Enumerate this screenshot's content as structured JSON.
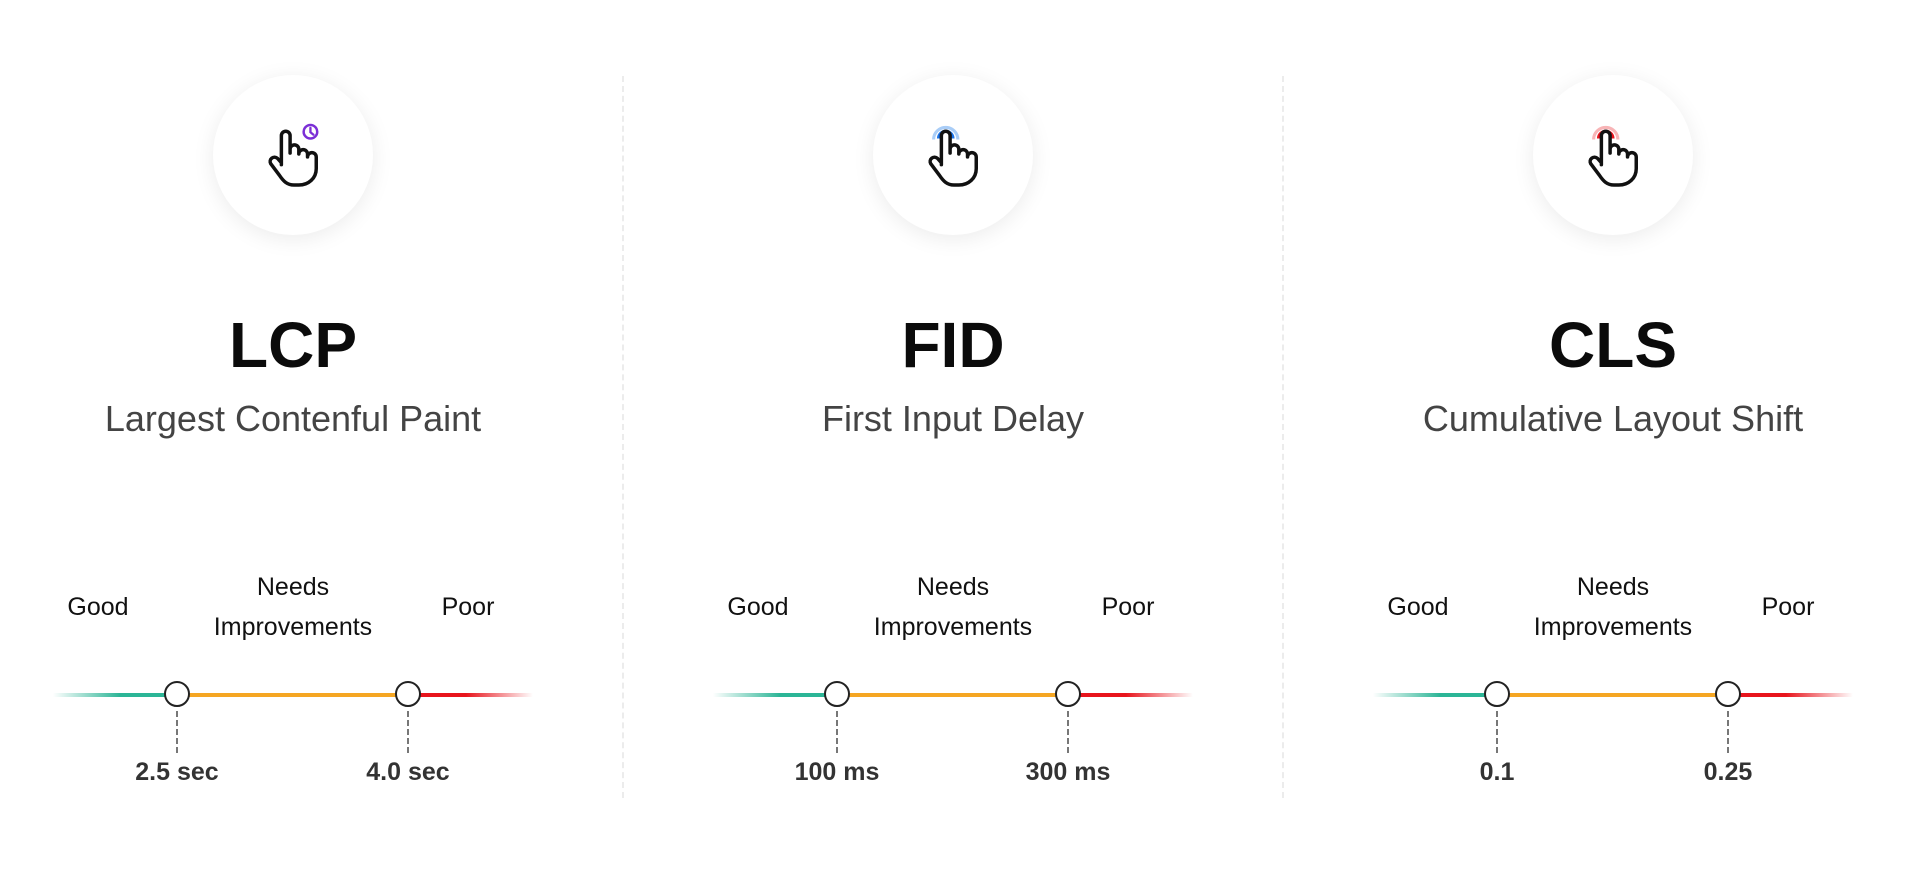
{
  "labels": {
    "good": "Good",
    "needs_1": "Needs",
    "needs_2": "Improvements",
    "poor": "Poor"
  },
  "colors": {
    "good": "#2bb596",
    "needs": "#f5a623",
    "poor": "#e8141c",
    "lcp_accent": "#7b2fd6",
    "fid_accent": "#1a73e8",
    "cls_accent": "#e8141c"
  },
  "metrics": [
    {
      "abbr": "LCP",
      "name": "Largest Contenful Paint",
      "icon": "hand-pointer-clock-icon",
      "threshold_1": "2.5 sec",
      "threshold_2": "4.0 sec"
    },
    {
      "abbr": "FID",
      "name": "First Input Delay",
      "icon": "hand-tap-blue-icon",
      "threshold_1": "100 ms",
      "threshold_2": "300 ms"
    },
    {
      "abbr": "CLS",
      "name": "Cumulative Layout Shift",
      "icon": "hand-tap-red-icon",
      "threshold_1": "0.1",
      "threshold_2": "0.25"
    }
  ]
}
